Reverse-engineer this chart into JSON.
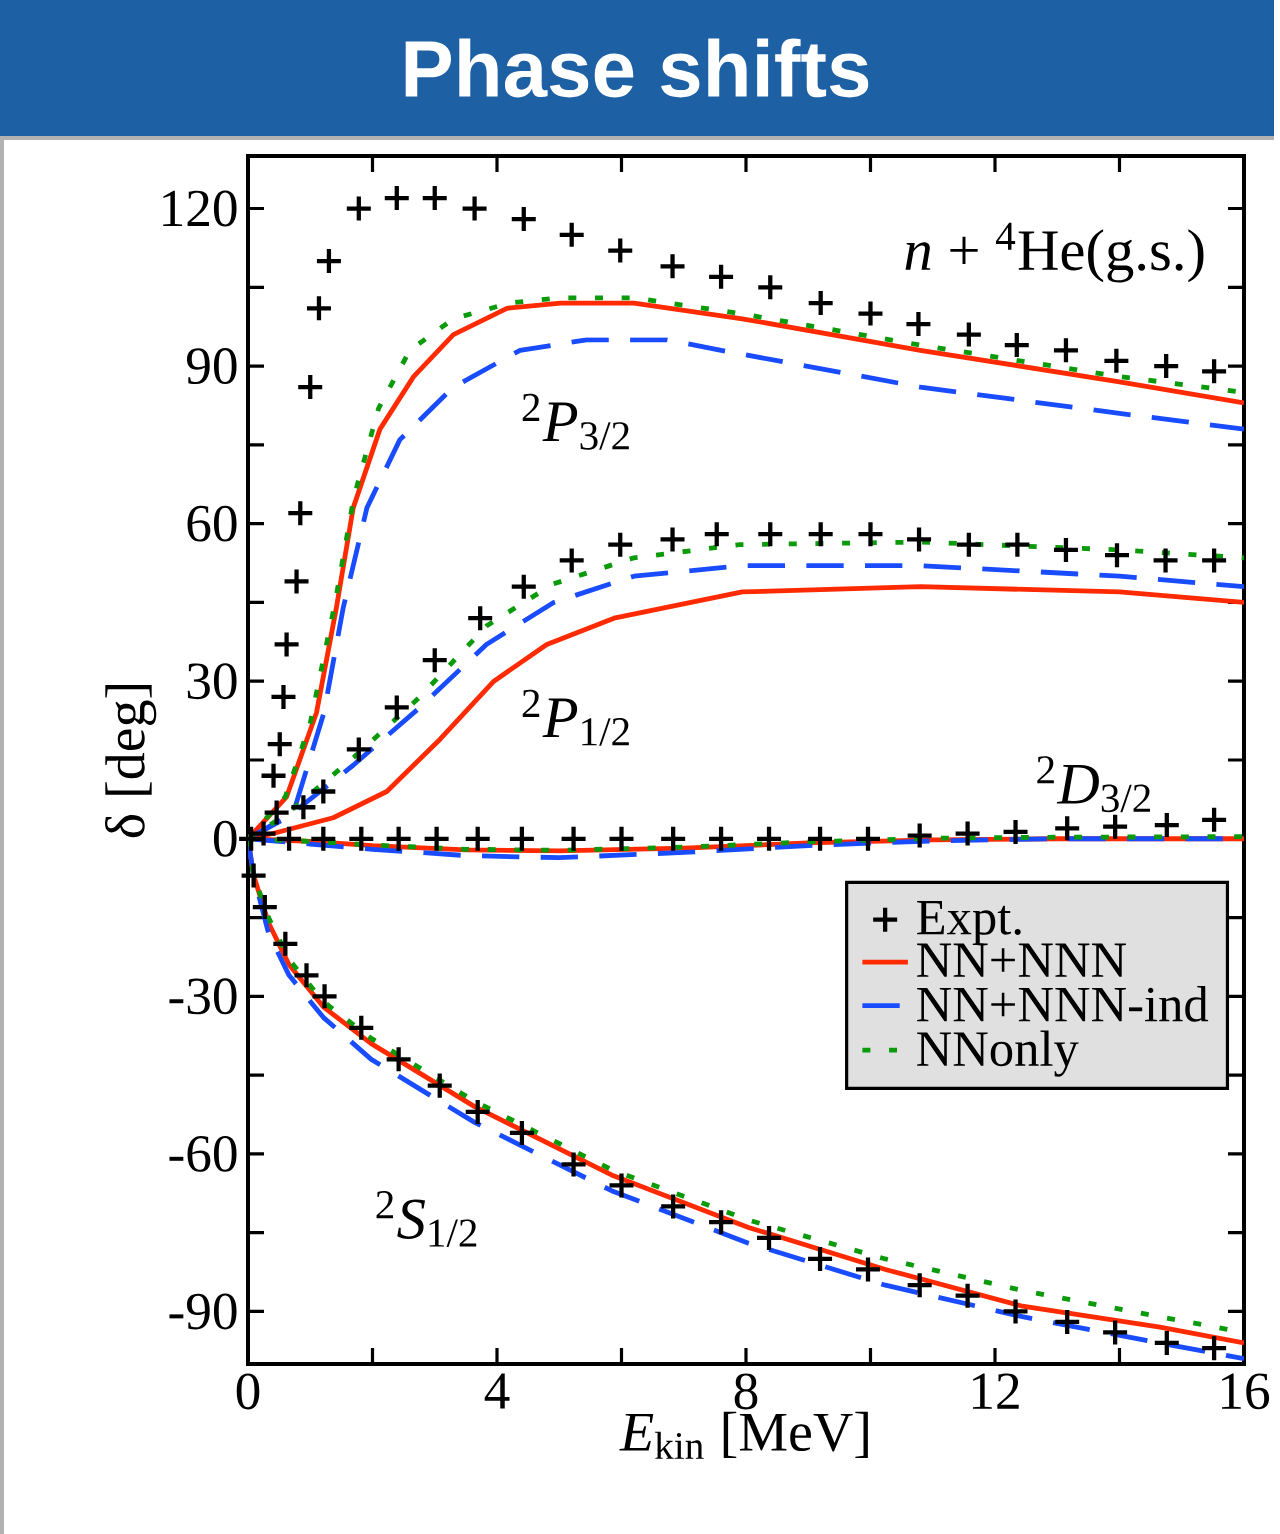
{
  "chart_data": {
    "type": "line",
    "title": "Phase shifts",
    "xlabel": "*E*$_{kin}$ [MeV]",
    "ylabel": "δ [deg]",
    "xlim": [
      0,
      16
    ],
    "ylim": [
      -100,
      130
    ],
    "xticks": [
      0,
      {
        "value": 2,
        "label": null
      },
      4,
      {
        "value": 6,
        "label": null
      },
      8,
      {
        "value": 10,
        "label": null
      },
      12,
      {
        "value": 14,
        "label": null
      },
      16
    ],
    "yticks": [
      -90,
      {
        "value": -75,
        "label": null
      },
      -60,
      {
        "value": -45,
        "label": null
      },
      -30,
      {
        "value": -15,
        "label": null
      },
      0,
      {
        "value": 15,
        "label": null
      },
      30,
      {
        "value": 45,
        "label": null
      },
      60,
      {
        "value": 75,
        "label": null
      },
      90,
      {
        "value": 105,
        "label": null
      },
      120
    ],
    "grid": false,
    "legend": "right",
    "annotations": [
      "*n* + $^{4}$He(g.s.)",
      "$^{2}$*P*$_{3/2}$",
      "$^{2}$*P*$_{1/2}$",
      "$^{2}$*D*$_{3/2}$",
      "$^{2}$*S*$_{1/2}$"
    ],
    "series": [
      {
        "name": "Expt.",
        "type": "scatter",
        "marker": "cross",
        "color": "#000000",
        "x": [
          0.25,
          0.41,
          0.51,
          0.57,
          0.62,
          0.78,
          0.84,
          1.0,
          1.14,
          1.3,
          1.78,
          2.39,
          3.0,
          3.64,
          4.43,
          5.2,
          5.98,
          6.82,
          7.6,
          8.39,
          9.2,
          10.0,
          10.77,
          11.58,
          12.35,
          13.14,
          13.95,
          14.75,
          15.52,
          0.46,
          0.89,
          1.21,
          1.78,
          2.39,
          3.0,
          3.73,
          4.43,
          5.2,
          5.98,
          6.82,
          7.53,
          8.39,
          9.2,
          10.0,
          10.78,
          11.58,
          12.36,
          13.14,
          13.96,
          14.74,
          15.52,
          0.05,
          0.66,
          1.21,
          1.82,
          2.42,
          3.03,
          3.69,
          4.4,
          5.23,
          6.0,
          6.83,
          7.6,
          8.37,
          9.19,
          9.96,
          10.79,
          11.56,
          12.33,
          13.16,
          13.93,
          14.76,
          15.52,
          0.09,
          0.27,
          0.6,
          0.94,
          1.23,
          1.82,
          2.42,
          3.08,
          3.69,
          4.4,
          5.23,
          6.0,
          6.83,
          7.6,
          8.37,
          9.19,
          9.96,
          10.79,
          11.56,
          12.33,
          13.16,
          13.93,
          14.76,
          15.52
        ],
        "values": [
          1,
          12,
          18,
          27,
          37,
          49,
          62,
          86,
          101,
          110,
          120,
          122,
          122,
          120,
          118,
          115,
          112,
          109,
          107,
          105,
          102,
          100,
          98,
          96,
          94,
          93,
          91,
          90,
          89,
          5,
          6,
          9,
          17,
          25,
          34,
          42,
          48,
          53,
          56,
          57,
          58,
          58,
          58,
          58,
          57,
          56,
          56,
          55,
          54,
          53,
          53,
          0,
          0,
          0,
          0,
          0,
          0,
          0,
          0,
          0,
          0,
          0,
          0,
          0,
          0,
          0,
          0.6,
          1.0,
          1.3,
          2.0,
          2.3,
          2.6,
          3.6,
          -7,
          -13,
          -20,
          -26,
          -30,
          -36,
          -42,
          -47,
          -52,
          -56,
          -62,
          -66,
          -70,
          -73,
          -76,
          -80,
          -82,
          -85,
          -87,
          -90,
          -92,
          -94,
          -96,
          -97
        ]
      },
      {
        "name": "NN+NNN",
        "color": "#ff2a00",
        "line_style": "solid",
        "x": [
          0,
          0.62,
          1.1,
          1.42,
          1.69,
          2.12,
          2.66,
          3.3,
          4.16,
          5.02,
          6.2,
          7.94,
          10.8,
          14.0,
          16
        ],
        "values": [
          0,
          8,
          24,
          44,
          63,
          78,
          88,
          96,
          101,
          102,
          102,
          99,
          93,
          87,
          83
        ]
      },
      {
        "name": "NN+NNN-ind",
        "color": "#1a4cff",
        "line_style": "dashed",
        "x": [
          0,
          0.73,
          1.22,
          1.53,
          1.91,
          2.44,
          3.3,
          4.37,
          5.44,
          6.73,
          7.6,
          10.8,
          14.0,
          16
        ],
        "values": [
          0,
          5,
          24,
          44,
          63,
          76,
          86,
          93,
          95,
          95,
          93,
          86,
          81,
          78
        ]
      },
      {
        "name": "NNonly",
        "color": "#0a9a0a",
        "line_style": "dotted",
        "x": [
          0,
          0.6,
          1.0,
          1.4,
          1.7,
          2.1,
          2.6,
          3.3,
          4.2,
          5.0,
          6.2,
          7.9,
          10.8,
          14.0,
          16
        ],
        "values": [
          0,
          8,
          22,
          45,
          65,
          82,
          93,
          99,
          102,
          103,
          103,
          100,
          94,
          88,
          85
        ]
      },
      {
        "color": "#ff2a00",
        "line_style": "solid",
        "x": [
          0,
          0.4,
          1.37,
          2.23,
          3.09,
          3.95,
          4.8,
          5.88,
          7.94,
          10.8,
          14.0,
          16
        ],
        "values": [
          0,
          1,
          4,
          9,
          19,
          30,
          37,
          42,
          47,
          48,
          47,
          45
        ]
      },
      {
        "color": "#1a4cff",
        "line_style": "dashed",
        "x": [
          0,
          0.62,
          1.69,
          2.76,
          3.83,
          4.91,
          6.2,
          7.94,
          10.8,
          14.0,
          16
        ],
        "values": [
          0,
          4,
          14,
          25,
          37,
          45,
          50,
          52,
          52,
          50,
          48
        ]
      },
      {
        "color": "#0a9a0a",
        "line_style": "dotted",
        "x": [
          0,
          0.6,
          1.7,
          2.76,
          3.83,
          4.9,
          6.2,
          7.9,
          10.8,
          14.0,
          16
        ],
        "values": [
          0,
          4.5,
          15.5,
          27,
          40.5,
          48.5,
          53.5,
          56,
          56.5,
          55,
          53.5
        ]
      },
      {
        "color": "#ff2a00",
        "line_style": "solid",
        "x": [
          0,
          1,
          2,
          3.5,
          5,
          7,
          9,
          11,
          13,
          16
        ],
        "values": [
          0,
          -0.5,
          -1.3,
          -2.1,
          -2.3,
          -1.8,
          -0.8,
          -0.2,
          0,
          0
        ]
      },
      {
        "color": "#1a4cff",
        "line_style": "dashed",
        "x": [
          0,
          1,
          2,
          3.5,
          5,
          7,
          9,
          11,
          13,
          16
        ],
        "values": [
          0,
          -1,
          -2,
          -3.2,
          -3.6,
          -2.6,
          -1.3,
          -0.4,
          0,
          0
        ]
      },
      {
        "color": "#0a9a0a",
        "line_style": "dotted",
        "x": [
          0,
          1,
          2,
          3.5,
          5,
          7,
          9,
          11,
          13,
          16
        ],
        "values": [
          0,
          -0.5,
          -1.2,
          -2,
          -2.2,
          -1.6,
          -0.6,
          0.1,
          0.3,
          0.4
        ]
      },
      {
        "color": "#ff2a00",
        "line_style": "solid",
        "x": [
          0,
          0.09,
          0.33,
          0.66,
          1.21,
          1.98,
          3.64,
          5.84,
          8.04,
          10.24,
          12.44,
          14.65,
          16
        ],
        "values": [
          0,
          -7,
          -16,
          -24,
          -32,
          -39,
          -51,
          -64,
          -74,
          -82,
          -89,
          -93,
          -96
        ]
      },
      {
        "color": "#1a4cff",
        "line_style": "dashed",
        "x": [
          0,
          0.09,
          0.33,
          0.66,
          1.21,
          1.98,
          3.64,
          5.84,
          8.04,
          10.24,
          12.44,
          14.65,
          16
        ],
        "values": [
          0,
          -7,
          -18,
          -26,
          -34,
          -42,
          -54,
          -67,
          -77,
          -85,
          -91,
          -96,
          -99
        ]
      },
      {
        "color": "#0a9a0a",
        "line_style": "dotted",
        "x": [
          0,
          0.09,
          0.33,
          0.66,
          1.21,
          1.98,
          3.64,
          5.84,
          8.04,
          10.24,
          12.44,
          14.65,
          16
        ],
        "values": [
          0,
          -7,
          -15,
          -23,
          -31,
          -38,
          -50,
          -63,
          -72.6,
          -80,
          -86,
          -91,
          -94
        ]
      }
    ]
  }
}
